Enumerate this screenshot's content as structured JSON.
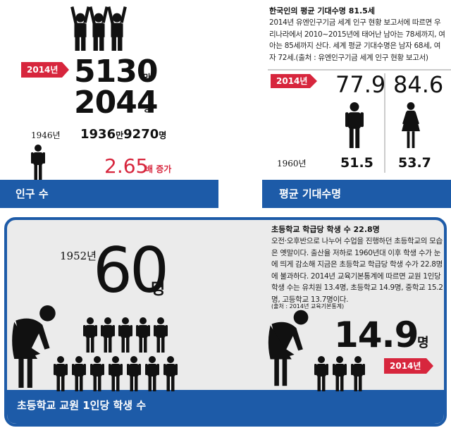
{
  "population": {
    "badge": "2014년",
    "now_main": "5130",
    "now_unit1": "만",
    "now_second": "2044",
    "now_unit2": "명",
    "past_year": "1946년",
    "past_main": "1936",
    "past_unit1": "만",
    "past_second": "9270",
    "past_unit2": "명",
    "growth_value": "2.65",
    "growth_label": "배 증가",
    "label": "인구 수"
  },
  "life_expectancy": {
    "title": "한국인의 평균 기대수명 81.5세",
    "body": "2014년 유엔인구기금 세계 인구 현황 보고서에 따르면 우리나라에서 2010~2015년에 태어난 남아는 78세까지, 여아는 85세까지 산다. 세계 평균 기대수명은 남자 68세, 여자 72세.(출처 : 유엔인구기금 세계 인구 현황 보고서)",
    "badge": "2014년",
    "male_now": "77.9",
    "female_now": "84.6",
    "past_year": "1960년",
    "male_past": "51.5",
    "female_past": "53.7",
    "label": "평균 기대수명"
  },
  "students": {
    "past_year": "1952년",
    "past_value": "60",
    "past_unit": "명",
    "title": "초등학교 학급당 학생 수 22.8명",
    "body": "오전·오후반으로 나누어 수업을 진행하던 초등학교의 모습은 옛말이다. 출산율 저하로 1960년대 이후 학생 수가 눈에 띄게 감소해 지금은 초등학교 학급당 학생 수가 22.8명에 불과하다. 2014년 교육기본통계에 따르면 교원 1인당 학생 수는 유치원 13.4명, 초등학교 14.9명, 중학교 15.2명, 고등학교 13.7명이다.",
    "source": "(출처 : 2014년 교육기본통계)",
    "now_value": "14.9",
    "now_unit": "명",
    "badge": "2014년",
    "label": "초등학교 교원 1인당 학생 수"
  }
}
